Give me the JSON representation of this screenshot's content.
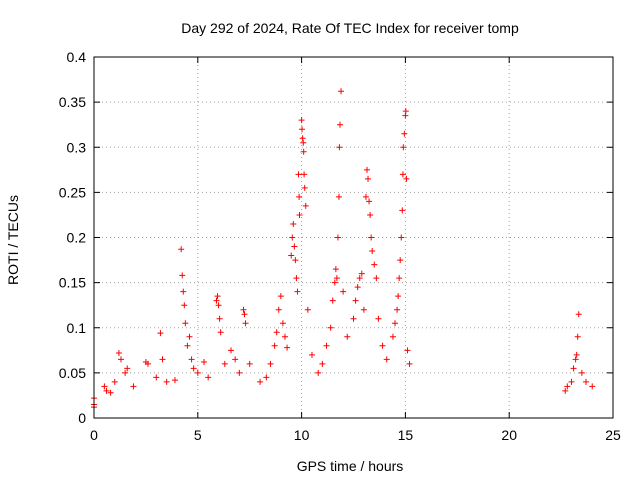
{
  "chart_data": {
    "type": "scatter",
    "title": "Day 292 of 2024, Rate Of TEC Index for receiver tomp",
    "xlabel": "GPS time / hours",
    "ylabel": "ROTI / TECUs",
    "xlim": [
      0,
      25
    ],
    "ylim": [
      0,
      0.4
    ],
    "xticks": [
      0,
      5,
      10,
      15,
      20,
      25
    ],
    "xtick_labels": [
      "0",
      "5",
      "10",
      "15",
      "20",
      "25"
    ],
    "yticks": [
      0,
      0.05,
      0.1,
      0.15,
      0.2,
      0.25,
      0.3,
      0.35,
      0.4
    ],
    "ytick_labels": [
      "0",
      "0.05",
      "0.1",
      "0.15",
      "0.2",
      "0.25",
      "0.3",
      "0.35",
      "0.4"
    ],
    "grid": true,
    "marker": "+",
    "color": "#ff0000",
    "series": [
      {
        "name": "ROTI",
        "points": [
          [
            0.0,
            0.022
          ],
          [
            0.0,
            0.015
          ],
          [
            0.0,
            0.012
          ],
          [
            0.5,
            0.035
          ],
          [
            0.6,
            0.03
          ],
          [
            0.8,
            0.028
          ],
          [
            1.0,
            0.04
          ],
          [
            1.2,
            0.072
          ],
          [
            1.3,
            0.065
          ],
          [
            1.5,
            0.05
          ],
          [
            1.6,
            0.055
          ],
          [
            1.9,
            0.035
          ],
          [
            2.5,
            0.062
          ],
          [
            2.6,
            0.06
          ],
          [
            3.0,
            0.045
          ],
          [
            3.2,
            0.094
          ],
          [
            3.3,
            0.065
          ],
          [
            3.5,
            0.04
          ],
          [
            3.9,
            0.042
          ],
          [
            4.2,
            0.187
          ],
          [
            4.25,
            0.158
          ],
          [
            4.3,
            0.14
          ],
          [
            4.35,
            0.125
          ],
          [
            4.4,
            0.105
          ],
          [
            4.5,
            0.08
          ],
          [
            4.6,
            0.09
          ],
          [
            4.7,
            0.065
          ],
          [
            4.8,
            0.055
          ],
          [
            5.0,
            0.05
          ],
          [
            5.3,
            0.062
          ],
          [
            5.5,
            0.045
          ],
          [
            5.9,
            0.13
          ],
          [
            5.95,
            0.135
          ],
          [
            6.0,
            0.125
          ],
          [
            6.05,
            0.11
          ],
          [
            6.1,
            0.095
          ],
          [
            6.3,
            0.06
          ],
          [
            6.6,
            0.075
          ],
          [
            6.8,
            0.065
          ],
          [
            7.0,
            0.05
          ],
          [
            7.2,
            0.12
          ],
          [
            7.25,
            0.115
          ],
          [
            7.3,
            0.105
          ],
          [
            7.5,
            0.06
          ],
          [
            8.0,
            0.04
          ],
          [
            8.3,
            0.045
          ],
          [
            8.5,
            0.06
          ],
          [
            8.7,
            0.08
          ],
          [
            8.8,
            0.095
          ],
          [
            8.9,
            0.12
          ],
          [
            9.0,
            0.135
          ],
          [
            9.1,
            0.105
          ],
          [
            9.2,
            0.09
          ],
          [
            9.3,
            0.078
          ],
          [
            9.5,
            0.18
          ],
          [
            9.55,
            0.2
          ],
          [
            9.6,
            0.215
          ],
          [
            9.65,
            0.19
          ],
          [
            9.7,
            0.175
          ],
          [
            9.75,
            0.155
          ],
          [
            9.8,
            0.14
          ],
          [
            9.85,
            0.27
          ],
          [
            9.88,
            0.245
          ],
          [
            9.9,
            0.225
          ],
          [
            10.0,
            0.33
          ],
          [
            10.02,
            0.32
          ],
          [
            10.05,
            0.31
          ],
          [
            10.08,
            0.305
          ],
          [
            10.1,
            0.295
          ],
          [
            10.12,
            0.27
          ],
          [
            10.15,
            0.255
          ],
          [
            10.2,
            0.235
          ],
          [
            10.3,
            0.12
          ],
          [
            10.5,
            0.07
          ],
          [
            10.8,
            0.05
          ],
          [
            11.0,
            0.06
          ],
          [
            11.2,
            0.08
          ],
          [
            11.4,
            0.1
          ],
          [
            11.5,
            0.13
          ],
          [
            11.6,
            0.15
          ],
          [
            11.65,
            0.165
          ],
          [
            11.7,
            0.155
          ],
          [
            11.75,
            0.2
          ],
          [
            11.8,
            0.245
          ],
          [
            11.82,
            0.3
          ],
          [
            11.85,
            0.325
          ],
          [
            11.9,
            0.362
          ],
          [
            12.0,
            0.14
          ],
          [
            12.2,
            0.09
          ],
          [
            12.5,
            0.11
          ],
          [
            12.6,
            0.13
          ],
          [
            12.7,
            0.145
          ],
          [
            12.8,
            0.155
          ],
          [
            12.9,
            0.16
          ],
          [
            13.0,
            0.12
          ],
          [
            13.1,
            0.245
          ],
          [
            13.15,
            0.275
          ],
          [
            13.2,
            0.265
          ],
          [
            13.25,
            0.24
          ],
          [
            13.3,
            0.225
          ],
          [
            13.35,
            0.2
          ],
          [
            13.4,
            0.185
          ],
          [
            13.5,
            0.17
          ],
          [
            13.6,
            0.155
          ],
          [
            13.7,
            0.11
          ],
          [
            13.9,
            0.08
          ],
          [
            14.1,
            0.065
          ],
          [
            14.4,
            0.09
          ],
          [
            14.5,
            0.105
          ],
          [
            14.6,
            0.12
          ],
          [
            14.65,
            0.135
          ],
          [
            14.7,
            0.155
          ],
          [
            14.75,
            0.175
          ],
          [
            14.8,
            0.2
          ],
          [
            14.85,
            0.23
          ],
          [
            14.88,
            0.27
          ],
          [
            14.9,
            0.3
          ],
          [
            14.95,
            0.315
          ],
          [
            15.0,
            0.335
          ],
          [
            15.02,
            0.34
          ],
          [
            15.05,
            0.265
          ],
          [
            15.1,
            0.075
          ],
          [
            15.2,
            0.06
          ],
          [
            22.7,
            0.03
          ],
          [
            22.8,
            0.035
          ],
          [
            23.0,
            0.04
          ],
          [
            23.1,
            0.055
          ],
          [
            23.2,
            0.065
          ],
          [
            23.25,
            0.07
          ],
          [
            23.3,
            0.09
          ],
          [
            23.35,
            0.115
          ],
          [
            23.5,
            0.05
          ],
          [
            23.7,
            0.04
          ],
          [
            24.0,
            0.035
          ]
        ]
      }
    ]
  }
}
